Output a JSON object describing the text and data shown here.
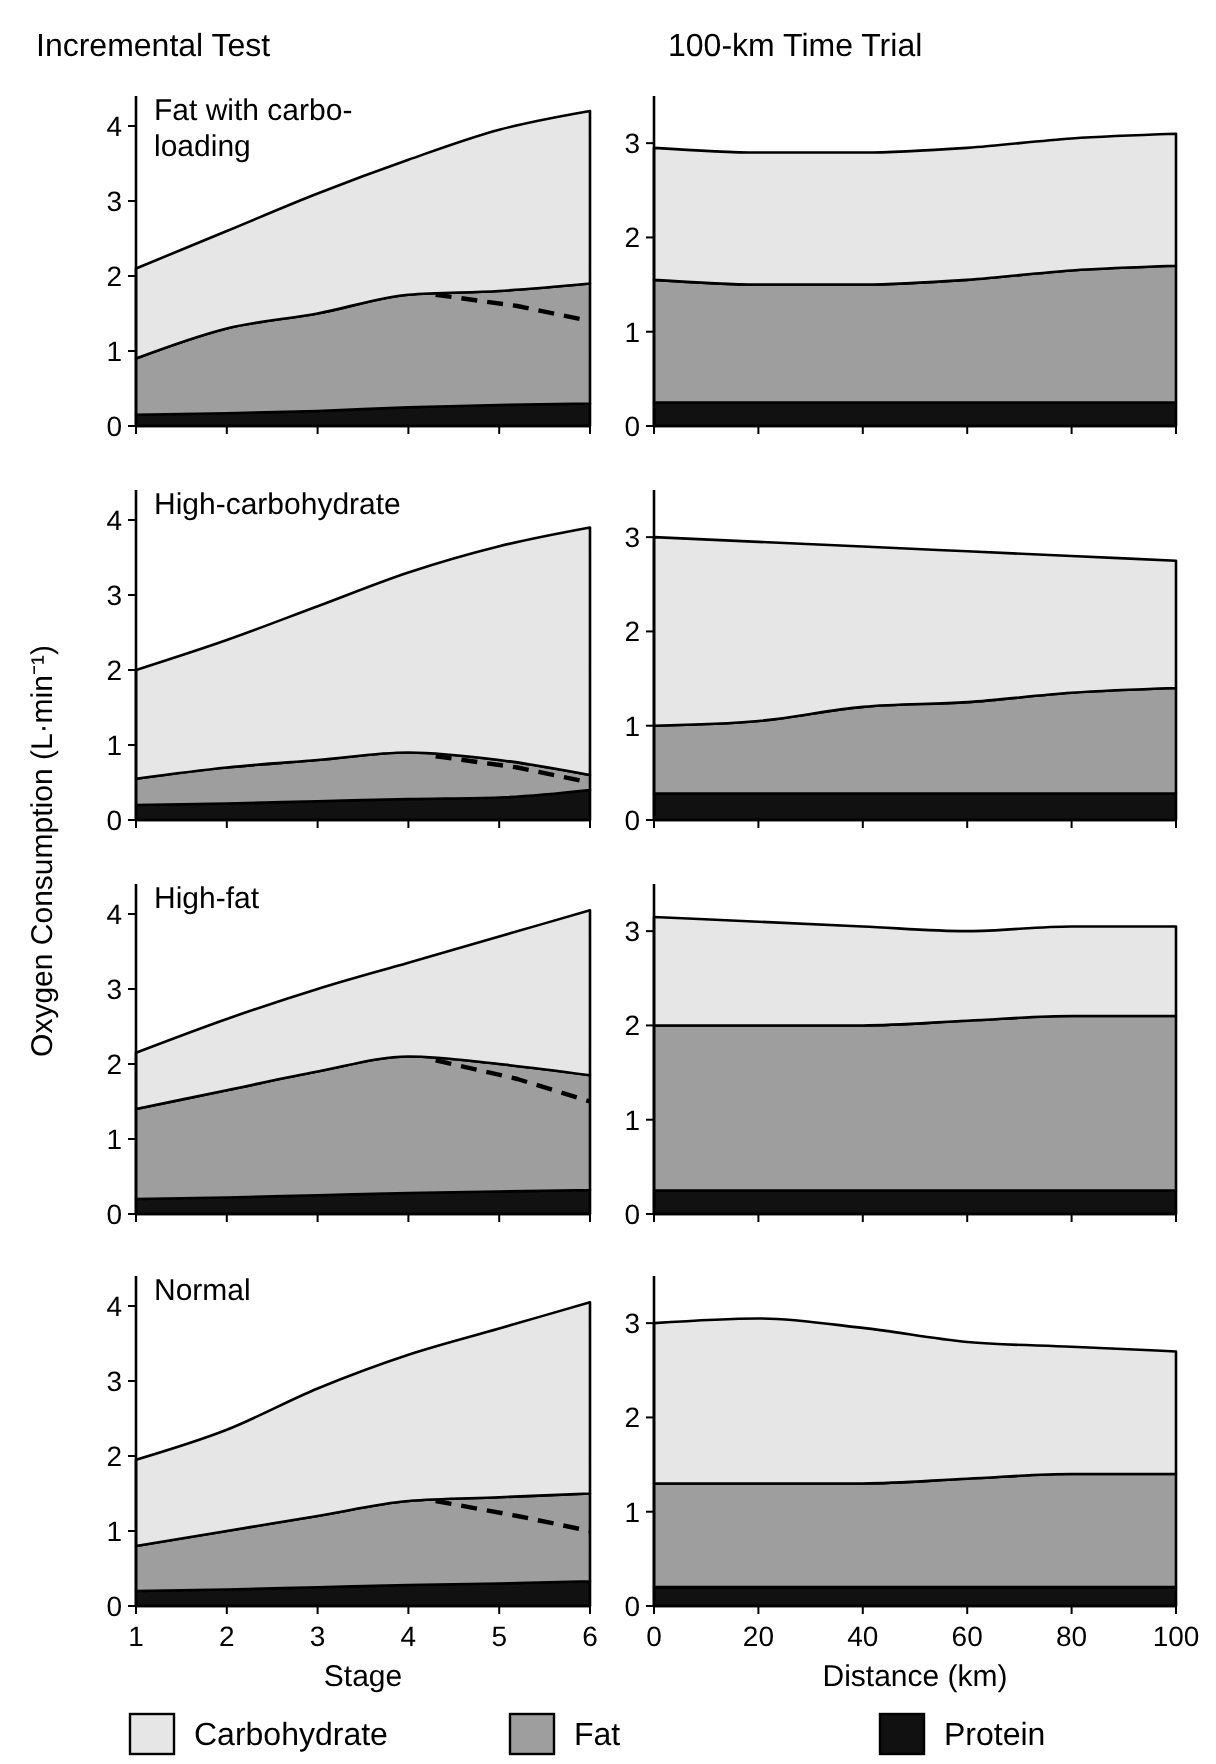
{
  "chart_data": [
    {
      "type": "area",
      "title": "Incremental Test",
      "subtitle": "Fat with carbo-\nloading",
      "stacked": true,
      "tick_labels": "y",
      "x": [
        1,
        2,
        3,
        4,
        5,
        6
      ],
      "xlim": [
        1,
        6
      ],
      "xticks": [
        1,
        2,
        3,
        4,
        5,
        6
      ],
      "ylim": [
        0,
        4.4
      ],
      "yticks": [
        0,
        1,
        2,
        3,
        4
      ],
      "series": [
        {
          "color": "#111111",
          "values": [
            0.15,
            0.17,
            0.2,
            0.25,
            0.28,
            0.3
          ]
        },
        {
          "color": "#9e9e9e",
          "values": [
            0.75,
            1.13,
            1.3,
            1.5,
            1.52,
            1.6
          ]
        },
        {
          "color": "#e6e6e6",
          "values": [
            1.2,
            1.3,
            1.6,
            1.8,
            2.15,
            2.3
          ]
        },
        {
          "type": "line",
          "line_style": "dashed",
          "color": "#000000",
          "x": [
            4.3,
            5.2,
            6
          ],
          "values": [
            1.75,
            1.6,
            1.4
          ]
        }
      ]
    },
    {
      "type": "area",
      "title": "100-km Time Trial",
      "stacked": true,
      "tick_labels": "y",
      "x": [
        0,
        20,
        40,
        60,
        80,
        100
      ],
      "xlim": [
        0,
        100
      ],
      "xticks": [
        0,
        20,
        40,
        60,
        80,
        100
      ],
      "ylim": [
        0,
        3.5
      ],
      "yticks": [
        0,
        1,
        2,
        3
      ],
      "series": [
        {
          "color": "#111111",
          "values": [
            0.25,
            0.25,
            0.25,
            0.25,
            0.25,
            0.25
          ]
        },
        {
          "color": "#9e9e9e",
          "values": [
            1.3,
            1.25,
            1.25,
            1.3,
            1.4,
            1.45
          ]
        },
        {
          "color": "#e6e6e6",
          "values": [
            1.4,
            1.4,
            1.4,
            1.4,
            1.4,
            1.4
          ]
        }
      ]
    },
    {
      "type": "area",
      "subtitle": "High-carbohydrate",
      "stacked": true,
      "tick_labels": "y",
      "x": [
        1,
        2,
        3,
        4,
        5,
        6
      ],
      "xlim": [
        1,
        6
      ],
      "xticks": [
        1,
        2,
        3,
        4,
        5,
        6
      ],
      "ylim": [
        0,
        4.4
      ],
      "yticks": [
        0,
        1,
        2,
        3,
        4
      ],
      "series": [
        {
          "color": "#111111",
          "values": [
            0.2,
            0.22,
            0.25,
            0.28,
            0.3,
            0.4
          ]
        },
        {
          "color": "#9e9e9e",
          "values": [
            0.35,
            0.48,
            0.55,
            0.62,
            0.5,
            0.2
          ]
        },
        {
          "color": "#e6e6e6",
          "values": [
            1.45,
            1.7,
            2.05,
            2.4,
            2.85,
            3.3
          ]
        },
        {
          "type": "line",
          "line_style": "dashed",
          "color": "#000000",
          "x": [
            4.3,
            5.2,
            6
          ],
          "values": [
            0.85,
            0.7,
            0.5
          ]
        }
      ]
    },
    {
      "type": "area",
      "stacked": true,
      "tick_labels": "y",
      "x": [
        0,
        20,
        40,
        60,
        80,
        100
      ],
      "xlim": [
        0,
        100
      ],
      "xticks": [
        0,
        20,
        40,
        60,
        80,
        100
      ],
      "ylim": [
        0,
        3.5
      ],
      "yticks": [
        0,
        1,
        2,
        3
      ],
      "series": [
        {
          "color": "#111111",
          "values": [
            0.28,
            0.28,
            0.28,
            0.28,
            0.28,
            0.28
          ]
        },
        {
          "color": "#9e9e9e",
          "values": [
            0.72,
            0.77,
            0.92,
            0.97,
            1.07,
            1.12
          ]
        },
        {
          "color": "#e6e6e6",
          "values": [
            2.0,
            1.9,
            1.7,
            1.6,
            1.45,
            1.35
          ]
        }
      ]
    },
    {
      "type": "area",
      "subtitle": "High-fat",
      "ylabel": "Oxygen Consumption (L·min⁻¹)",
      "stacked": true,
      "tick_labels": "y",
      "x": [
        1,
        2,
        3,
        4,
        5,
        6
      ],
      "xlim": [
        1,
        6
      ],
      "xticks": [
        1,
        2,
        3,
        4,
        5,
        6
      ],
      "ylim": [
        0,
        4.4
      ],
      "yticks": [
        0,
        1,
        2,
        3,
        4
      ],
      "series": [
        {
          "color": "#111111",
          "values": [
            0.2,
            0.22,
            0.25,
            0.28,
            0.3,
            0.32
          ]
        },
        {
          "color": "#9e9e9e",
          "values": [
            1.2,
            1.43,
            1.65,
            1.82,
            1.7,
            1.53
          ]
        },
        {
          "color": "#e6e6e6",
          "values": [
            0.75,
            0.95,
            1.1,
            1.25,
            1.7,
            2.2
          ]
        },
        {
          "type": "line",
          "line_style": "dashed",
          "color": "#000000",
          "x": [
            4.3,
            5.2,
            6
          ],
          "values": [
            2.05,
            1.8,
            1.5
          ]
        }
      ]
    },
    {
      "type": "area",
      "stacked": true,
      "tick_labels": "y",
      "x": [
        0,
        20,
        40,
        60,
        80,
        100
      ],
      "xlim": [
        0,
        100
      ],
      "xticks": [
        0,
        20,
        40,
        60,
        80,
        100
      ],
      "ylim": [
        0,
        3.5
      ],
      "yticks": [
        0,
        1,
        2,
        3
      ],
      "series": [
        {
          "color": "#111111",
          "values": [
            0.25,
            0.25,
            0.25,
            0.25,
            0.25,
            0.25
          ]
        },
        {
          "color": "#9e9e9e",
          "values": [
            1.75,
            1.75,
            1.75,
            1.8,
            1.85,
            1.85
          ]
        },
        {
          "color": "#e6e6e6",
          "values": [
            1.15,
            1.1,
            1.05,
            0.95,
            0.95,
            0.95
          ]
        }
      ]
    },
    {
      "type": "area",
      "subtitle": "Normal",
      "xlabel": "Stage",
      "stacked": true,
      "legend": "bottom",
      "x": [
        1,
        2,
        3,
        4,
        5,
        6
      ],
      "xlim": [
        1,
        6
      ],
      "xticks": [
        1,
        2,
        3,
        4,
        5,
        6
      ],
      "ylim": [
        0,
        4.4
      ],
      "yticks": [
        0,
        1,
        2,
        3,
        4
      ],
      "series": [
        {
          "name": "Protein",
          "color": "#111111",
          "values": [
            0.2,
            0.22,
            0.25,
            0.28,
            0.3,
            0.33
          ]
        },
        {
          "name": "Fat",
          "color": "#9e9e9e",
          "values": [
            0.6,
            0.78,
            0.95,
            1.12,
            1.15,
            1.17
          ]
        },
        {
          "name": "Carbohydrate",
          "color": "#e6e6e6",
          "values": [
            1.15,
            1.35,
            1.7,
            1.95,
            2.25,
            2.55
          ]
        },
        {
          "type": "line",
          "line_style": "dashed",
          "color": "#000000",
          "x": [
            4.3,
            5.2,
            6
          ],
          "values": [
            1.4,
            1.2,
            1.0
          ]
        }
      ]
    },
    {
      "type": "area",
      "xlabel": "Distance (km)",
      "stacked": true,
      "x": [
        0,
        20,
        40,
        60,
        80,
        100
      ],
      "xlim": [
        0,
        100
      ],
      "xticks": [
        0,
        20,
        40,
        60,
        80,
        100
      ],
      "ylim": [
        0,
        3.5
      ],
      "yticks": [
        0,
        1,
        2,
        3
      ],
      "series": [
        {
          "color": "#111111",
          "values": [
            0.2,
            0.2,
            0.2,
            0.2,
            0.2,
            0.2
          ]
        },
        {
          "color": "#9e9e9e",
          "values": [
            1.1,
            1.1,
            1.1,
            1.15,
            1.2,
            1.2
          ]
        },
        {
          "color": "#e6e6e6",
          "values": [
            1.7,
            1.75,
            1.65,
            1.45,
            1.35,
            1.3
          ]
        }
      ]
    }
  ]
}
